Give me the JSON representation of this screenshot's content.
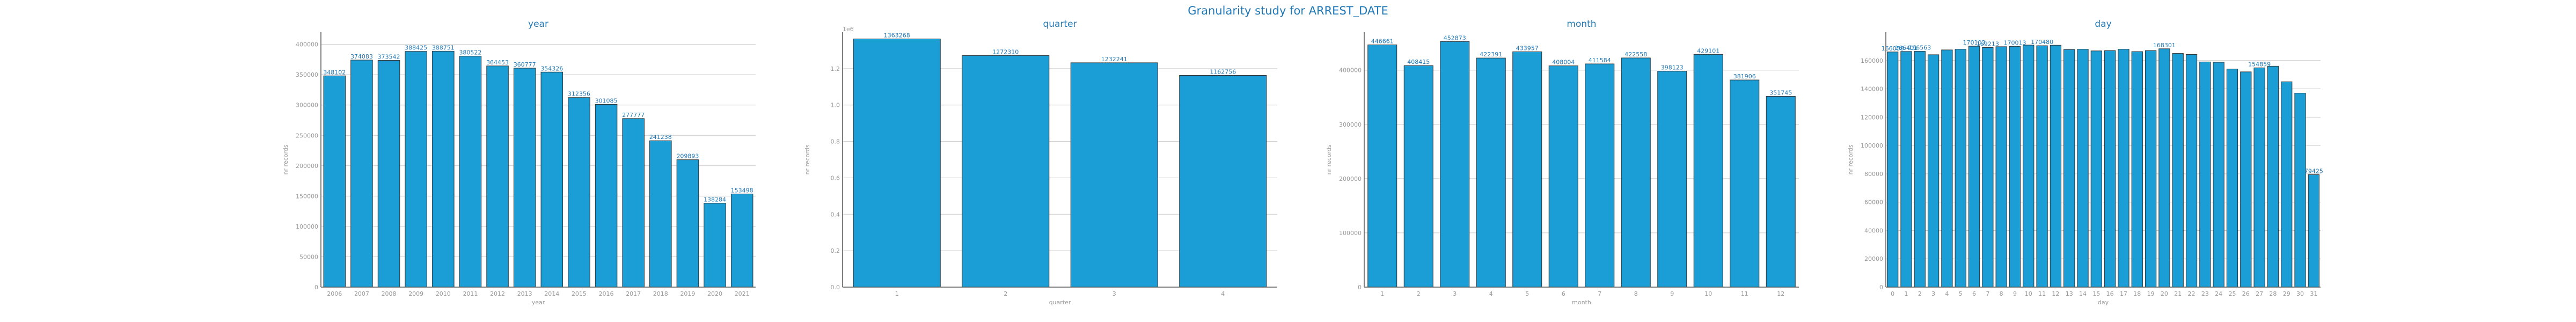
{
  "suptitle": "Granularity study for ARREST_DATE",
  "colors": {
    "bar": "#1b9ed6",
    "text": "#1f77b4",
    "tick": "#999999",
    "grid": "#cccccc"
  },
  "chart_data": [
    {
      "type": "bar",
      "title": "year",
      "xlabel": "year",
      "ylabel": "nr records",
      "categories": [
        "2006",
        "2007",
        "2008",
        "2009",
        "2010",
        "2011",
        "2012",
        "2013",
        "2014",
        "2015",
        "2016",
        "2017",
        "2018",
        "2019",
        "2020",
        "2021"
      ],
      "values": [
        348102,
        374083,
        373542,
        388425,
        388751,
        380522,
        364453,
        360777,
        354326,
        312356,
        301085,
        277777,
        241238,
        209893,
        138284,
        153498
      ],
      "ylim": [
        0,
        420000
      ],
      "yticks": [
        0,
        50000,
        100000,
        150000,
        200000,
        250000,
        300000,
        350000,
        400000
      ],
      "grid": true
    },
    {
      "type": "bar",
      "title": "quarter",
      "xlabel": "quarter",
      "ylabel": "nr records",
      "categories": [
        "1",
        "2",
        "3",
        "4"
      ],
      "values": [
        1363268,
        1272310,
        1232241,
        1162756
      ],
      "ylim": [
        0,
        1400000
      ],
      "yticks": [
        0,
        200000,
        400000,
        600000,
        800000,
        1000000,
        1200000
      ],
      "ytick_labels": [
        "0.0",
        "0.2",
        "0.4",
        "0.6",
        "0.8",
        "1.0",
        "1.2"
      ],
      "offset_text": "1e6",
      "grid": true
    },
    {
      "type": "bar",
      "title": "month",
      "xlabel": "month",
      "ylabel": "nr records",
      "categories": [
        "1",
        "2",
        "3",
        "4",
        "5",
        "6",
        "7",
        "8",
        "9",
        "10",
        "11",
        "12"
      ],
      "values": [
        446661,
        408415,
        452873,
        422391,
        433957,
        408004,
        411584,
        422558,
        398123,
        429101,
        381906,
        351745
      ],
      "ylim": [
        0,
        470000
      ],
      "yticks": [
        0,
        100000,
        200000,
        300000,
        400000
      ],
      "grid": true
    },
    {
      "type": "bar",
      "title": "day",
      "xlabel": "day",
      "ylabel": "nr records",
      "categories": [
        "0",
        "1",
        "2",
        "3",
        "4",
        "5",
        "6",
        "7",
        "8",
        "9",
        "10",
        "11",
        "12",
        "13",
        "14",
        "15",
        "16",
        "17",
        "18",
        "19",
        "20",
        "21",
        "22",
        "23",
        "24",
        "25",
        "26",
        "27",
        "28",
        "29",
        "30",
        "31"
      ],
      "values": [
        166058,
        166401,
        166563,
        164100,
        167500,
        168000,
        170103,
        169213,
        169800,
        170013,
        170900,
        170480,
        170800,
        167800,
        168000,
        166800,
        167000,
        168000,
        166300,
        167000,
        168301,
        165000,
        164300,
        159000,
        158800,
        154000,
        152000,
        154859,
        156000,
        145000,
        137000,
        79425
      ],
      "data_labels": [
        "166058",
        "166401",
        "166563",
        "",
        "",
        "",
        "170103",
        "169213",
        "",
        "170013",
        "",
        "170480",
        "",
        "",
        "",
        "",
        "",
        "",
        "",
        "",
        "168301",
        "",
        "",
        "",
        "",
        "",
        "",
        "154859",
        "",
        "",
        "",
        "79425"
      ],
      "ylim": [
        0,
        180000
      ],
      "yticks": [
        0,
        20000,
        40000,
        60000,
        80000,
        100000,
        120000,
        140000,
        160000
      ],
      "grid": true
    }
  ]
}
